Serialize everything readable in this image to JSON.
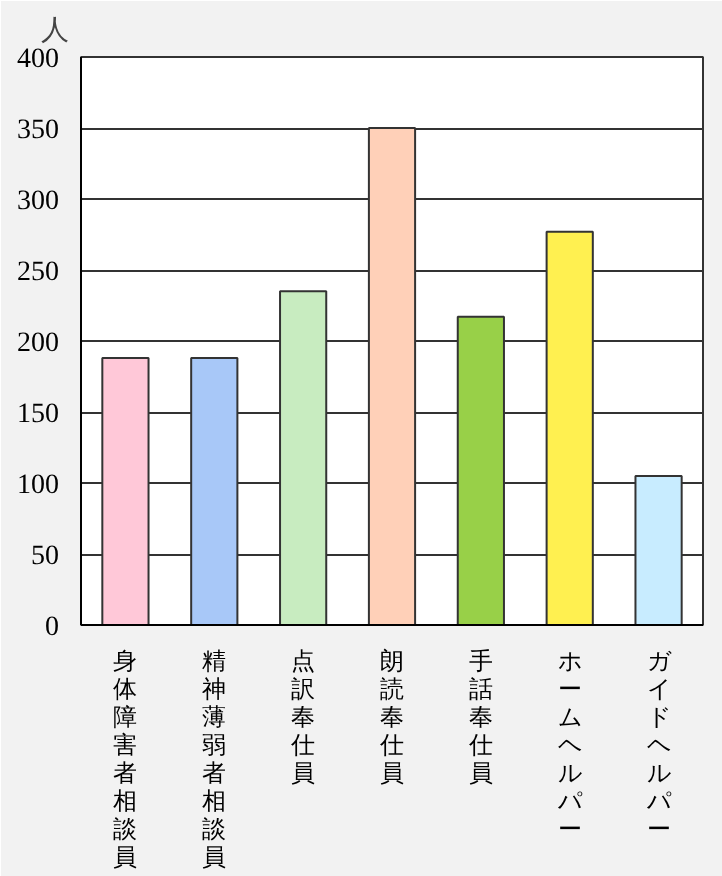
{
  "chart_data": {
    "type": "bar",
    "ylabel": "人",
    "categories": [
      "身体障害者相談員",
      "精神薄弱者相談員",
      "点訳奉仕員",
      "朗読奉仕員",
      "手話奉仕員",
      "ホームヘルパー",
      "ガイドヘルパー"
    ],
    "values": [
      188,
      188,
      235,
      350,
      217,
      277,
      105
    ],
    "colors": [
      "#ffc8d8",
      "#a8c8f8",
      "#c8ecc0",
      "#ffd0b8",
      "#98d048",
      "#fff050",
      "#c8ecff"
    ],
    "ylim": [
      0,
      400
    ],
    "yticks": [
      0,
      50,
      100,
      150,
      200,
      250,
      300,
      350,
      400
    ],
    "grid": "y"
  }
}
